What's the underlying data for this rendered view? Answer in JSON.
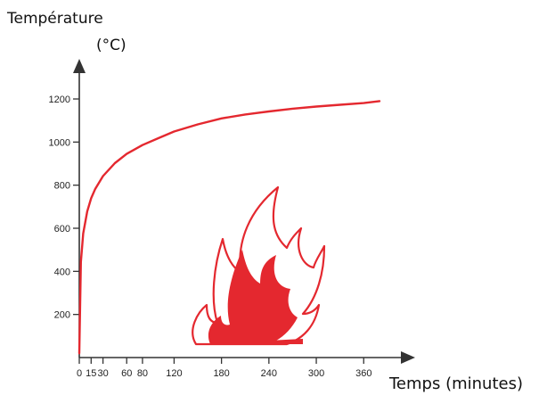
{
  "chart_data": {
    "type": "line",
    "title": "",
    "ylabel_line1": "Température",
    "ylabel_line2": "(°C)",
    "xlabel": "Temps (minutes)",
    "xlim": [
      0,
      390
    ],
    "ylim": [
      0,
      1300
    ],
    "x_ticks": [
      0,
      15,
      30,
      60,
      80,
      120,
      180,
      240,
      300,
      360
    ],
    "x_tick_labels": [
      "0",
      "15",
      "30",
      "60",
      "80",
      "120",
      "180",
      "240",
      "300",
      "360"
    ],
    "y_ticks": [
      200,
      400,
      600,
      800,
      1000,
      1200
    ],
    "y_tick_labels": [
      "200",
      "400",
      "600",
      "800",
      "1000",
      "1200"
    ],
    "grid": false,
    "series": [
      {
        "x": [
          0,
          2,
          5,
          10,
          15,
          20,
          30,
          45,
          60,
          80,
          100,
          120,
          150,
          180,
          210,
          240,
          270,
          300,
          330,
          360,
          380
        ],
        "y": [
          20,
          445,
          576,
          678,
          739,
          781,
          842,
          902,
          945,
          986,
          1018,
          1049,
          1082,
          1110,
          1128,
          1142,
          1155,
          1165,
          1173,
          1181,
          1190
        ]
      }
    ],
    "colors": {
      "curve": "#e4282f",
      "axis": "#333333",
      "flame": "#e4282f"
    },
    "illustration": "flame-icon"
  }
}
